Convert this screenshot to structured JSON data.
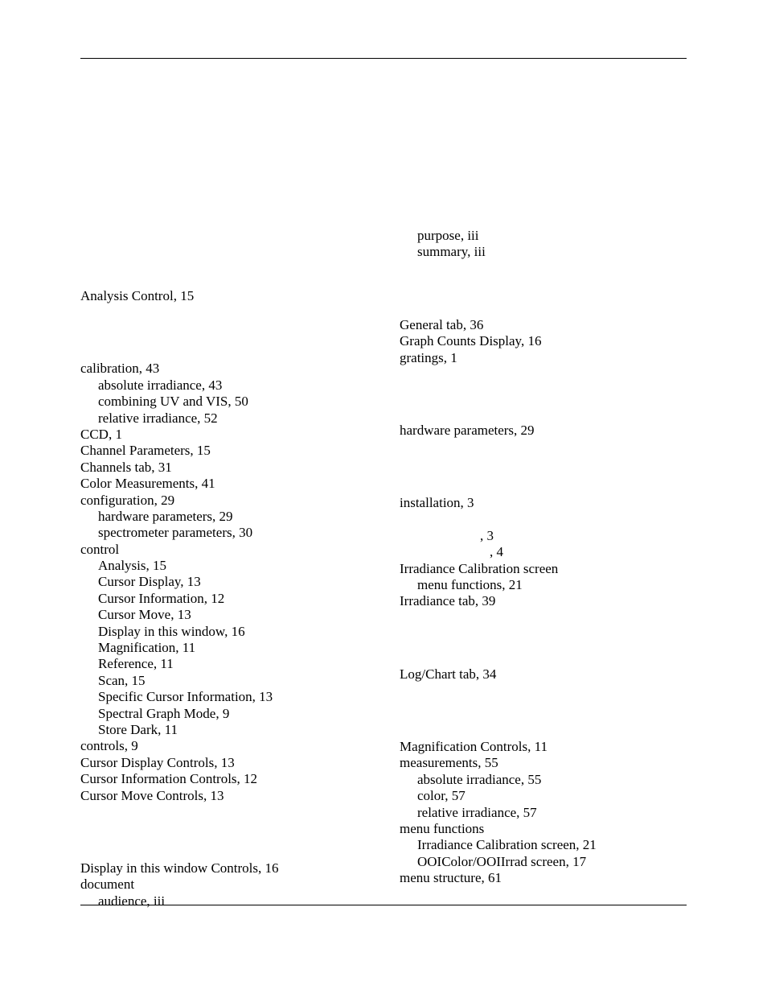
{
  "left": {
    "blockA": [
      {
        "text": "Analysis Control, 15",
        "sub": false
      }
    ],
    "blockC": [
      {
        "text": "calibration, 43",
        "sub": false
      },
      {
        "text": "absolute irradiance, 43",
        "sub": true
      },
      {
        "text": "combining UV and VIS, 50",
        "sub": true
      },
      {
        "text": "relative irradiance, 52",
        "sub": true
      },
      {
        "text": "CCD, 1",
        "sub": false
      },
      {
        "text": "Channel Parameters, 15",
        "sub": false
      },
      {
        "text": "Channels tab, 31",
        "sub": false
      },
      {
        "text": "Color Measurements, 41",
        "sub": false
      },
      {
        "text": "configuration, 29",
        "sub": false
      },
      {
        "text": "hardware parameters, 29",
        "sub": true
      },
      {
        "text": "spectrometer parameters, 30",
        "sub": true
      },
      {
        "text": "control",
        "sub": false
      },
      {
        "text": "Analysis, 15",
        "sub": true
      },
      {
        "text": "Cursor Display, 13",
        "sub": true
      },
      {
        "text": "Cursor Information, 12",
        "sub": true
      },
      {
        "text": "Cursor Move, 13",
        "sub": true
      },
      {
        "text": "Display in this window, 16",
        "sub": true
      },
      {
        "text": "Magnification, 11",
        "sub": true
      },
      {
        "text": "Reference, 11",
        "sub": true
      },
      {
        "text": "Scan, 15",
        "sub": true
      },
      {
        "text": "Specific Cursor Information, 13",
        "sub": true
      },
      {
        "text": "Spectral Graph Mode, 9",
        "sub": true
      },
      {
        "text": "Store Dark, 11",
        "sub": true
      },
      {
        "text": "controls, 9",
        "sub": false
      },
      {
        "text": "Cursor Display Controls, 13",
        "sub": false
      },
      {
        "text": "Cursor Information Controls, 12",
        "sub": false
      },
      {
        "text": "Cursor Move Controls, 13",
        "sub": false
      }
    ],
    "blockD": [
      {
        "text": "Display in this window Controls, 16",
        "sub": false
      },
      {
        "text": "document",
        "sub": false
      },
      {
        "text": "audience, iii",
        "sub": true
      }
    ]
  },
  "right": {
    "blockDoc": [
      {
        "text": "purpose, iii",
        "sub": true
      },
      {
        "text": "summary, iii",
        "sub": true
      }
    ],
    "blockG": [
      {
        "text": "General tab, 36",
        "sub": false
      },
      {
        "text": "Graph Counts Display, 16",
        "sub": false
      },
      {
        "text": "gratings, 1",
        "sub": false
      }
    ],
    "blockH": [
      {
        "text": "hardware parameters, 29",
        "sub": false
      }
    ],
    "blockI": [
      {
        "text": "installation, 3",
        "sub": false
      },
      {
        "text": "",
        "sub": true,
        "style": "height:20px"
      },
      {
        "text": ", 3",
        "sub": true,
        "pad": 100
      },
      {
        "text": ", 4",
        "sub": true,
        "pad": 112
      },
      {
        "text": "Irradiance Calibration screen",
        "sub": false
      },
      {
        "text": "menu functions, 21",
        "sub": true
      },
      {
        "text": "Irradiance tab, 39",
        "sub": false
      }
    ],
    "blockL": [
      {
        "text": "Log/Chart tab, 34",
        "sub": false
      }
    ],
    "blockM": [
      {
        "text": "Magnification Controls, 11",
        "sub": false
      },
      {
        "text": "measurements, 55",
        "sub": false
      },
      {
        "text": "absolute irradiance, 55",
        "sub": true
      },
      {
        "text": "color, 57",
        "sub": true
      },
      {
        "text": "relative irradiance, 57",
        "sub": true
      },
      {
        "text": "menu functions",
        "sub": false
      },
      {
        "text": "Irradiance Calibration screen, 21",
        "sub": true
      },
      {
        "text": "OOIColor/OOIIrrad screen, 17",
        "sub": true
      },
      {
        "text": "menu structure, 61",
        "sub": false
      }
    ]
  }
}
